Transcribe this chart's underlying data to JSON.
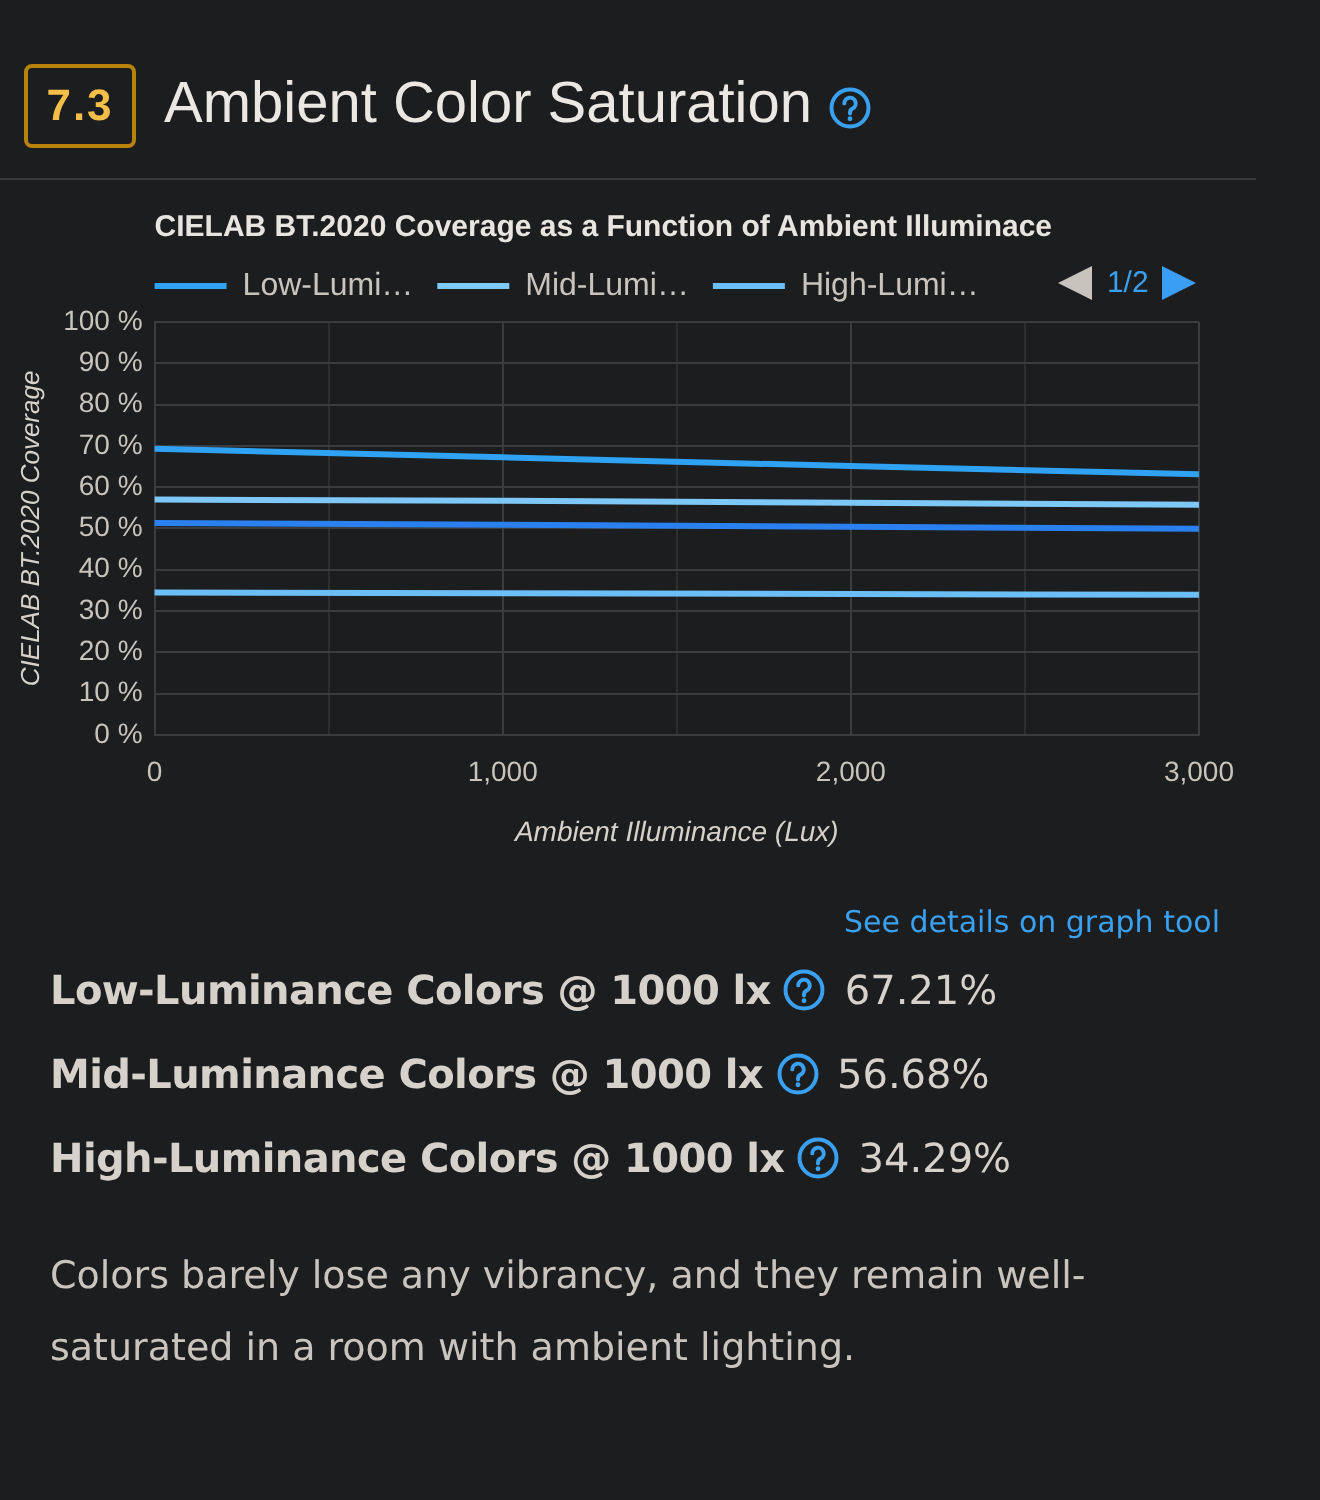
{
  "chart_data": {
    "type": "line",
    "title": "Ambient Color Saturation",
    "subtitle": "CIELAB BT.2020 Coverage as a Function of Ambient Illuminace",
    "xlabel": "Ambient Illuminance (Lux)",
    "ylabel": "CIELAB BT.2020 Coverage",
    "x": [
      0,
      1000,
      2000,
      3000
    ],
    "series": [
      {
        "name": "Low-Lumi…",
        "color": "#2fa2f3",
        "values": [
          69.3,
          67.21,
          65.1,
          63.1
        ]
      },
      {
        "name": "Mid-Lumi…",
        "color": "#7ec8f8",
        "values": [
          57.0,
          56.68,
          56.2,
          55.7
        ]
      },
      {
        "name": "High-Lumi…",
        "color": "#6cbff6",
        "values": [
          34.5,
          34.29,
          34.1,
          33.9
        ]
      },
      {
        "color": "#2b80f0",
        "values": [
          51.3,
          50.9,
          50.4,
          49.9
        ]
      }
    ],
    "xlim": [
      0,
      3000
    ],
    "xticks": [
      0,
      {
        "value": 500,
        "label": null
      },
      {
        "value": 1000,
        "label": "1,000"
      },
      {
        "value": 1500,
        "label": null
      },
      {
        "value": 2000,
        "label": "2,000"
      },
      {
        "value": 2500,
        "label": null
      },
      {
        "value": 3000,
        "label": "3,000"
      }
    ],
    "ylim": [
      0,
      100
    ],
    "yticks": [
      {
        "value": 0,
        "label": "0 %"
      },
      {
        "value": 10,
        "label": "10 %"
      },
      {
        "value": 20,
        "label": "20 %"
      },
      {
        "value": 30,
        "label": "30 %"
      },
      {
        "value": 40,
        "label": "40 %"
      },
      {
        "value": 50,
        "label": "50 %"
      },
      {
        "value": 60,
        "label": "60 %"
      },
      {
        "value": 70,
        "label": "70 %"
      },
      {
        "value": 80,
        "label": "80 %"
      },
      {
        "value": 90,
        "label": "90 %"
      },
      {
        "value": 100,
        "label": "100 %"
      }
    ],
    "grid": true,
    "legend": "top",
    "annotations": [
      "7.3",
      "1/2",
      "See details on graph tool",
      "Low-Luminance Colors @ 1000 lx",
      "67.21%",
      "Mid-Luminance Colors @ 1000 lx",
      "56.68%",
      "High-Luminance Colors @ 1000 lx",
      "34.29%",
      "Colors barely lose any vibrancy, and they remain well-saturated in a room with ambient lighting."
    ]
  }
}
